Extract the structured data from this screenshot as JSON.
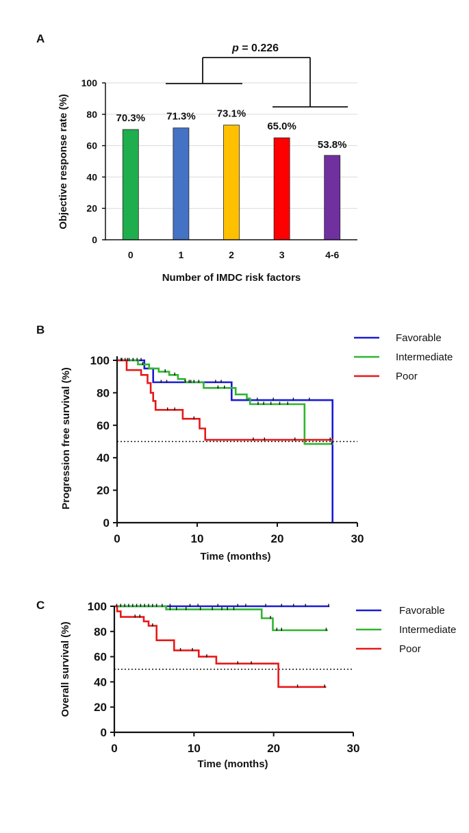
{
  "chart_data": [
    {
      "panel": "A",
      "type": "bar",
      "categories": [
        "0",
        "1",
        "2",
        "3",
        "4-6"
      ],
      "values": [
        70.3,
        71.3,
        73.1,
        65.0,
        53.8
      ],
      "value_labels": [
        "70.3%",
        "71.3%",
        "73.1%",
        "65.0%",
        "53.8%"
      ],
      "colors": [
        "#1fae4d",
        "#4472c4",
        "#ffc000",
        "#ff0000",
        "#7030a0"
      ],
      "xlabel": "Number of IMDC risk factors",
      "ylabel": "Objective response rate (%)",
      "ylim": [
        0,
        100
      ],
      "yticks": [
        "0",
        "20",
        "40",
        "60",
        "80",
        "100"
      ],
      "grid": true,
      "annotation": {
        "p_symbol": "p",
        "p_value": " = 0.226",
        "groups": [
          [
            "0",
            "1",
            "2"
          ],
          [
            "3",
            "4-6"
          ]
        ]
      }
    },
    {
      "panel": "B",
      "type": "line",
      "xlabel": "Time (months)",
      "ylabel": "Progression free survival (%)",
      "xlim": [
        0,
        30
      ],
      "ylim": [
        0,
        100
      ],
      "xticks": [
        "0",
        "10",
        "20",
        "30"
      ],
      "yticks": [
        "0",
        "20",
        "40",
        "60",
        "80",
        "100"
      ],
      "reference_line": 50,
      "legend_position": "top-right",
      "series": [
        {
          "name": "Favorable",
          "color": "#1a1ad6",
          "steps": [
            [
              0,
              100
            ],
            [
              3.4,
              100
            ],
            [
              3.4,
              95
            ],
            [
              4.5,
              95
            ],
            [
              4.5,
              86.5
            ],
            [
              14.3,
              86.5
            ],
            [
              14.3,
              75.5
            ],
            [
              26.9,
              75.5
            ],
            [
              26.9,
              0
            ]
          ],
          "censors": [
            [
              0.6,
              100
            ],
            [
              1.0,
              100
            ],
            [
              1.5,
              100
            ],
            [
              2.0,
              100
            ],
            [
              2.5,
              100
            ],
            [
              3.0,
              100
            ],
            [
              5.5,
              86.5
            ],
            [
              6.2,
              86.5
            ],
            [
              8.5,
              86.5
            ],
            [
              9.2,
              86.5
            ],
            [
              12.3,
              86.5
            ],
            [
              13.0,
              86.5
            ],
            [
              17.5,
              75.5
            ],
            [
              19.5,
              75.5
            ],
            [
              22.0,
              75.5
            ],
            [
              24.0,
              75.5
            ]
          ]
        },
        {
          "name": "Intermediate",
          "color": "#2fb52f",
          "steps": [
            [
              0,
              100
            ],
            [
              2.6,
              100
            ],
            [
              2.6,
              97.5
            ],
            [
              4.0,
              97.5
            ],
            [
              4.0,
              95
            ],
            [
              5.2,
              95
            ],
            [
              5.2,
              93
            ],
            [
              6.5,
              93
            ],
            [
              6.5,
              91
            ],
            [
              7.6,
              91
            ],
            [
              7.6,
              88.5
            ],
            [
              8.5,
              88.5
            ],
            [
              8.5,
              86.5
            ],
            [
              10.8,
              86.5
            ],
            [
              10.8,
              83
            ],
            [
              14.8,
              83
            ],
            [
              14.8,
              79
            ],
            [
              16.2,
              79
            ],
            [
              16.2,
              76.5
            ],
            [
              16.6,
              76.5
            ],
            [
              16.6,
              73
            ],
            [
              23.4,
              73
            ],
            [
              23.4,
              48.5
            ],
            [
              27.0,
              48.5
            ]
          ],
          "censors": [
            [
              0.5,
              100
            ],
            [
              1.3,
              100
            ],
            [
              2.0,
              100
            ],
            [
              3.2,
              97.5
            ],
            [
              6.0,
              93
            ],
            [
              7.2,
              91
            ],
            [
              9.0,
              86.5
            ],
            [
              9.6,
              86.5
            ],
            [
              10.2,
              86.5
            ],
            [
              12.6,
              83
            ],
            [
              13.4,
              83
            ],
            [
              17.6,
              73
            ],
            [
              18.3,
              73
            ],
            [
              19.2,
              73
            ],
            [
              20.3,
              73
            ],
            [
              21.3,
              73
            ],
            [
              26.8,
              48.5
            ]
          ]
        },
        {
          "name": "Poor",
          "color": "#e81818",
          "steps": [
            [
              0,
              100
            ],
            [
              1.2,
              100
            ],
            [
              1.2,
              94
            ],
            [
              3.0,
              94
            ],
            [
              3.0,
              91
            ],
            [
              3.8,
              91
            ],
            [
              3.8,
              86
            ],
            [
              4.2,
              86
            ],
            [
              4.2,
              80
            ],
            [
              4.5,
              80
            ],
            [
              4.5,
              75
            ],
            [
              4.8,
              75
            ],
            [
              4.8,
              69.5
            ],
            [
              8.2,
              69.5
            ],
            [
              8.2,
              64
            ],
            [
              10.3,
              64
            ],
            [
              10.3,
              58
            ],
            [
              11.0,
              58
            ],
            [
              11.0,
              51
            ],
            [
              27.0,
              51
            ]
          ],
          "censors": [
            [
              6.3,
              69.5
            ],
            [
              7.2,
              69.5
            ],
            [
              9.6,
              64
            ],
            [
              17.0,
              51
            ],
            [
              18.4,
              51
            ],
            [
              22.2,
              51
            ],
            [
              26.6,
              51
            ]
          ]
        }
      ]
    },
    {
      "panel": "C",
      "type": "line",
      "xlabel": "Time (months)",
      "ylabel": "Overall survival (%)",
      "xlim": [
        0,
        30
      ],
      "ylim": [
        0,
        100
      ],
      "xticks": [
        "0",
        "10",
        "20",
        "30"
      ],
      "yticks": [
        "0",
        "20",
        "40",
        "60",
        "80",
        "100"
      ],
      "reference_line": 50,
      "legend_position": "top-right",
      "series": [
        {
          "name": "Favorable",
          "color": "#1a1ad6",
          "steps": [
            [
              0,
              100
            ],
            [
              27.0,
              100
            ]
          ],
          "censors": [
            [
              0.3,
              100
            ],
            [
              0.8,
              100
            ],
            [
              1.3,
              100
            ],
            [
              1.8,
              100
            ],
            [
              2.3,
              100
            ],
            [
              2.8,
              100
            ],
            [
              3.3,
              100
            ],
            [
              3.8,
              100
            ],
            [
              4.3,
              100
            ],
            [
              4.8,
              100
            ],
            [
              5.3,
              100
            ],
            [
              6.0,
              100
            ],
            [
              7.0,
              100
            ],
            [
              9.5,
              100
            ],
            [
              10.5,
              100
            ],
            [
              13.0,
              100
            ],
            [
              15.5,
              100
            ],
            [
              16.5,
              100
            ],
            [
              19.0,
              100
            ],
            [
              21.0,
              100
            ],
            [
              22.5,
              100
            ],
            [
              24.0,
              100
            ],
            [
              26.9,
              100
            ]
          ]
        },
        {
          "name": "Intermediate",
          "color": "#2fb52f",
          "steps": [
            [
              0,
              100
            ],
            [
              6.5,
              100
            ],
            [
              6.5,
              97.5
            ],
            [
              18.5,
              97.5
            ],
            [
              18.5,
              90.5
            ],
            [
              19.9,
              90.5
            ],
            [
              19.9,
              81
            ],
            [
              26.8,
              81
            ]
          ],
          "censors": [
            [
              7.0,
              97.5
            ],
            [
              7.8,
              97.5
            ],
            [
              9.0,
              97.5
            ],
            [
              10.8,
              97.5
            ],
            [
              12.3,
              97.5
            ],
            [
              13.5,
              97.5
            ],
            [
              14.2,
              97.5
            ],
            [
              15.0,
              97.5
            ],
            [
              19.6,
              90.5
            ],
            [
              20.4,
              81
            ],
            [
              21.0,
              81
            ],
            [
              26.6,
              81
            ]
          ]
        },
        {
          "name": "Poor",
          "color": "#e81818",
          "steps": [
            [
              0,
              100
            ],
            [
              0.35,
              100
            ],
            [
              0.35,
              96
            ],
            [
              0.8,
              96
            ],
            [
              0.8,
              91.5
            ],
            [
              3.7,
              91.5
            ],
            [
              3.7,
              88
            ],
            [
              4.3,
              88
            ],
            [
              4.3,
              84.5
            ],
            [
              5.3,
              84.5
            ],
            [
              5.3,
              73
            ],
            [
              7.5,
              73
            ],
            [
              7.5,
              65
            ],
            [
              10.6,
              65
            ],
            [
              10.6,
              60
            ],
            [
              12.8,
              60
            ],
            [
              12.8,
              54.5
            ],
            [
              20.6,
              54.5
            ],
            [
              20.6,
              36
            ],
            [
              26.6,
              36
            ]
          ],
          "censors": [
            [
              2.6,
              91.5
            ],
            [
              3.2,
              91.5
            ],
            [
              4.8,
              84.5
            ],
            [
              8.3,
              65
            ],
            [
              9.8,
              65
            ],
            [
              11.6,
              60
            ],
            [
              15.5,
              54.5
            ],
            [
              17.2,
              54.5
            ],
            [
              23.0,
              36
            ],
            [
              26.4,
              36
            ]
          ]
        }
      ]
    }
  ]
}
